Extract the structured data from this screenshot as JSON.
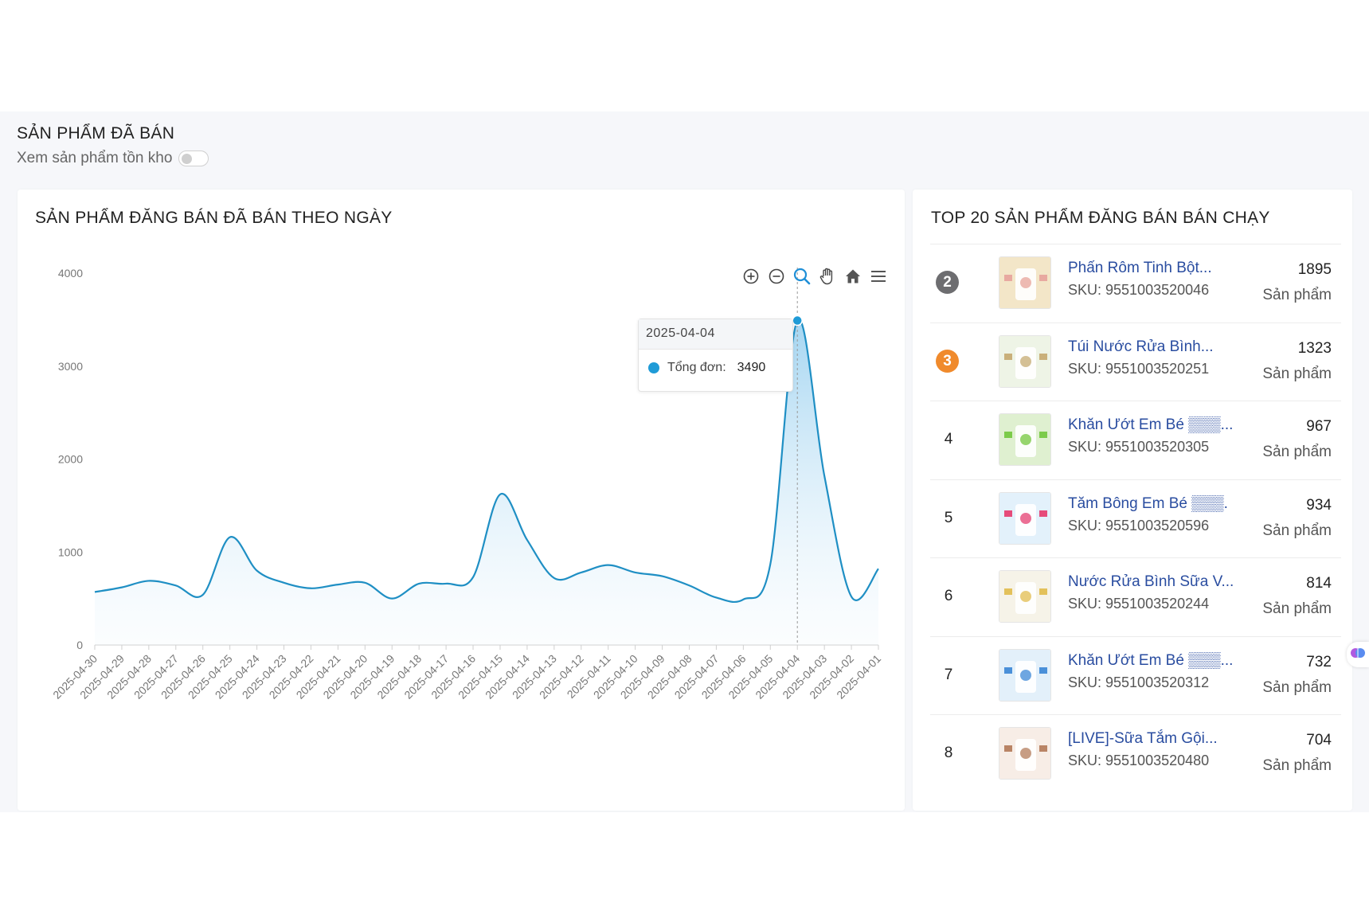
{
  "section": {
    "title": "SẢN PHẨM ĐÃ BÁN",
    "toggle_label": "Xem sản phẩm tồn kho",
    "toggle_on": false
  },
  "left_card": {
    "title": "SẢN PHẨM ĐĂNG BÁN ĐÃ BÁN THEO NGÀY",
    "toolbar": [
      "zoom-in-icon",
      "zoom-out-icon",
      "selection-zoom-icon",
      "pan-hand-icon",
      "home-reset-icon",
      "menu-icon"
    ],
    "tooltip": {
      "date": "2025-04-04",
      "series_label": "Tổng đơn:",
      "value": "3490",
      "color": "#1f9bd7"
    }
  },
  "chart_data": {
    "type": "area",
    "categories": [
      "2025-04-30",
      "2025-04-29",
      "2025-04-28",
      "2025-04-27",
      "2025-04-26",
      "2025-04-25",
      "2025-04-24",
      "2025-04-23",
      "2025-04-22",
      "2025-04-21",
      "2025-04-20",
      "2025-04-19",
      "2025-04-18",
      "2025-04-17",
      "2025-04-16",
      "2025-04-15",
      "2025-04-14",
      "2025-04-13",
      "2025-04-12",
      "2025-04-11",
      "2025-04-10",
      "2025-04-09",
      "2025-04-08",
      "2025-04-07",
      "2025-04-06",
      "2025-04-05",
      "2025-04-04",
      "2025-04-03",
      "2025-04-02",
      "2025-04-01"
    ],
    "series": [
      {
        "name": "Tổng đơn",
        "values": [
          570,
          620,
          690,
          640,
          540,
          1160,
          800,
          670,
          610,
          650,
          670,
          500,
          660,
          660,
          730,
          1620,
          1130,
          720,
          780,
          860,
          780,
          740,
          640,
          510,
          490,
          870,
          3490,
          1820,
          520,
          820
        ]
      }
    ],
    "y_ticks": [
      "0",
      "1000",
      "2000",
      "3000",
      "4000"
    ],
    "ylim": [
      0,
      4000
    ],
    "xlabel": "",
    "ylabel": "",
    "line_color": "#1f8fc4",
    "highlight_index": 26
  },
  "right_card": {
    "title": "TOP 20 SẢN PHẨM ĐĂNG BÁN BÁN CHẠY",
    "unit": "Sản phẩm",
    "items": [
      {
        "rank": "2",
        "badge_color": "#6d6d70",
        "name": "Phấn Rôm Tinh Bột...",
        "sku": "SKU: 9551003520046",
        "count": "1895"
      },
      {
        "rank": "3",
        "badge_color": "#f08a2c",
        "name": "Túi Nước Rửa Bình...",
        "sku": "SKU: 9551003520251",
        "count": "1323"
      },
      {
        "rank": "4",
        "badge_color": "",
        "name": "Khăn Ướt Em Bé ▒▒▒...",
        "sku": "SKU: 9551003520305",
        "count": "967"
      },
      {
        "rank": "5",
        "badge_color": "",
        "name": "Tăm Bông Em Bé ▒▒▒.",
        "sku": "SKU: 9551003520596",
        "count": "934"
      },
      {
        "rank": "6",
        "badge_color": "",
        "name": "Nước Rửa Bình Sữa V...",
        "sku": "SKU: 9551003520244",
        "count": "814"
      },
      {
        "rank": "7",
        "badge_color": "",
        "name": "Khăn Ướt Em Bé ▒▒▒...",
        "sku": "SKU: 9551003520312",
        "count": "732"
      },
      {
        "rank": "8",
        "badge_color": "",
        "name": "[LIVE]-Sữa Tắm Gội...",
        "sku": "SKU: 9551003520480",
        "count": "704"
      }
    ]
  }
}
